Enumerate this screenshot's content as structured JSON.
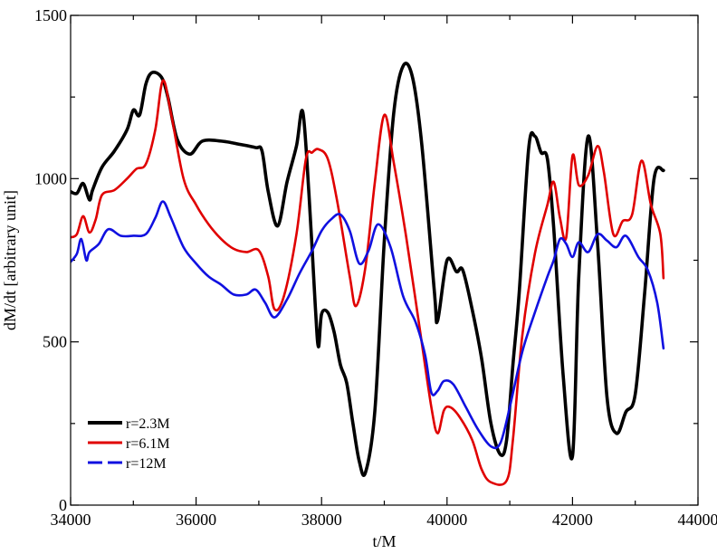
{
  "chart_data": {
    "type": "line",
    "title": "",
    "xlabel": "t/M",
    "ylabel": "dM/dt [arbitrary unit]",
    "xlim": [
      34000,
      44000
    ],
    "ylim": [
      0,
      1500
    ],
    "x_ticks": [
      34000,
      36000,
      38000,
      40000,
      42000,
      44000
    ],
    "x_tick_labels": [
      "34000",
      "36000",
      "38000",
      "40000",
      "42000",
      "44000"
    ],
    "y_ticks": [
      0,
      500,
      1000,
      1500
    ],
    "y_tick_labels": [
      "0",
      "500",
      "1000",
      "1500"
    ],
    "minor_x_ticks": [
      35000,
      37000,
      39000,
      41000,
      43000
    ],
    "minor_y_ticks": [
      250,
      750,
      1250
    ],
    "grid": false,
    "legend_position": "bottom-left",
    "series": [
      {
        "name": "r=2.3M",
        "color": "#000000",
        "dash": "solid",
        "points": [
          [
            34000,
            960
          ],
          [
            34100,
            955
          ],
          [
            34200,
            985
          ],
          [
            34300,
            935
          ],
          [
            34350,
            965
          ],
          [
            34500,
            1035
          ],
          [
            34700,
            1085
          ],
          [
            34900,
            1150
          ],
          [
            35000,
            1210
          ],
          [
            35100,
            1195
          ],
          [
            35200,
            1290
          ],
          [
            35300,
            1325
          ],
          [
            35450,
            1310
          ],
          [
            35550,
            1250
          ],
          [
            35700,
            1120
          ],
          [
            35900,
            1075
          ],
          [
            36100,
            1115
          ],
          [
            36400,
            1115
          ],
          [
            36700,
            1105
          ],
          [
            36950,
            1095
          ],
          [
            37050,
            1085
          ],
          [
            37150,
            960
          ],
          [
            37300,
            855
          ],
          [
            37450,
            990
          ],
          [
            37600,
            1100
          ],
          [
            37700,
            1205
          ],
          [
            37800,
            950
          ],
          [
            37900,
            610
          ],
          [
            37950,
            485
          ],
          [
            38000,
            585
          ],
          [
            38100,
            590
          ],
          [
            38200,
            530
          ],
          [
            38300,
            430
          ],
          [
            38400,
            375
          ],
          [
            38500,
            250
          ],
          [
            38600,
            135
          ],
          [
            38700,
            100
          ],
          [
            38850,
            290
          ],
          [
            39000,
            810
          ],
          [
            39150,
            1200
          ],
          [
            39300,
            1345
          ],
          [
            39450,
            1310
          ],
          [
            39600,
            1100
          ],
          [
            39800,
            650
          ],
          [
            39850,
            565
          ],
          [
            40000,
            750
          ],
          [
            40150,
            715
          ],
          [
            40250,
            720
          ],
          [
            40400,
            600
          ],
          [
            40550,
            450
          ],
          [
            40700,
            250
          ],
          [
            40850,
            155
          ],
          [
            40950,
            200
          ],
          [
            41050,
            430
          ],
          [
            41150,
            650
          ],
          [
            41300,
            1090
          ],
          [
            41400,
            1130
          ],
          [
            41500,
            1080
          ],
          [
            41600,
            1060
          ],
          [
            41700,
            850
          ],
          [
            41850,
            400
          ],
          [
            42000,
            150
          ],
          [
            42100,
            700
          ],
          [
            42250,
            1130
          ],
          [
            42400,
            800
          ],
          [
            42550,
            330
          ],
          [
            42700,
            220
          ],
          [
            42850,
            285
          ],
          [
            43000,
            340
          ],
          [
            43150,
            650
          ],
          [
            43300,
            1000
          ],
          [
            43450,
            1025
          ]
        ]
      },
      {
        "name": "r=6.1M",
        "color": "#e00000",
        "dash": "solid",
        "points": [
          [
            34000,
            820
          ],
          [
            34100,
            830
          ],
          [
            34200,
            885
          ],
          [
            34300,
            835
          ],
          [
            34400,
            875
          ],
          [
            34500,
            950
          ],
          [
            34700,
            965
          ],
          [
            34900,
            1000
          ],
          [
            35050,
            1030
          ],
          [
            35200,
            1045
          ],
          [
            35350,
            1150
          ],
          [
            35470,
            1300
          ],
          [
            35600,
            1200
          ],
          [
            35800,
            1000
          ],
          [
            36000,
            920
          ],
          [
            36200,
            860
          ],
          [
            36400,
            815
          ],
          [
            36600,
            785
          ],
          [
            36800,
            775
          ],
          [
            37000,
            780
          ],
          [
            37150,
            700
          ],
          [
            37250,
            600
          ],
          [
            37400,
            640
          ],
          [
            37600,
            830
          ],
          [
            37750,
            1060
          ],
          [
            37850,
            1080
          ],
          [
            37950,
            1090
          ],
          [
            38100,
            1060
          ],
          [
            38250,
            930
          ],
          [
            38450,
            700
          ],
          [
            38550,
            610
          ],
          [
            38700,
            730
          ],
          [
            38850,
            990
          ],
          [
            39000,
            1195
          ],
          [
            39150,
            1050
          ],
          [
            39350,
            820
          ],
          [
            39550,
            560
          ],
          [
            39750,
            300
          ],
          [
            39850,
            220
          ],
          [
            39950,
            290
          ],
          [
            40050,
            300
          ],
          [
            40200,
            270
          ],
          [
            40400,
            200
          ],
          [
            40550,
            110
          ],
          [
            40700,
            70
          ],
          [
            40950,
            75
          ],
          [
            41050,
            200
          ],
          [
            41200,
            520
          ],
          [
            41400,
            770
          ],
          [
            41600,
            920
          ],
          [
            41700,
            990
          ],
          [
            41800,
            880
          ],
          [
            41900,
            820
          ],
          [
            42000,
            1070
          ],
          [
            42100,
            980
          ],
          [
            42250,
            1010
          ],
          [
            42400,
            1100
          ],
          [
            42500,
            1020
          ],
          [
            42650,
            830
          ],
          [
            42800,
            870
          ],
          [
            42950,
            890
          ],
          [
            43100,
            1055
          ],
          [
            43250,
            920
          ],
          [
            43400,
            830
          ],
          [
            43450,
            695
          ]
        ]
      },
      {
        "name": "r=12M",
        "color": "#1010e0",
        "dash": "dashed",
        "points": [
          [
            34000,
            745
          ],
          [
            34100,
            770
          ],
          [
            34170,
            815
          ],
          [
            34250,
            750
          ],
          [
            34300,
            775
          ],
          [
            34450,
            800
          ],
          [
            34600,
            845
          ],
          [
            34800,
            825
          ],
          [
            35000,
            825
          ],
          [
            35200,
            830
          ],
          [
            35350,
            880
          ],
          [
            35470,
            930
          ],
          [
            35600,
            880
          ],
          [
            35800,
            790
          ],
          [
            36000,
            740
          ],
          [
            36200,
            700
          ],
          [
            36400,
            675
          ],
          [
            36600,
            645
          ],
          [
            36800,
            645
          ],
          [
            36950,
            660
          ],
          [
            37100,
            620
          ],
          [
            37250,
            575
          ],
          [
            37450,
            630
          ],
          [
            37650,
            710
          ],
          [
            37850,
            780
          ],
          [
            38000,
            840
          ],
          [
            38150,
            875
          ],
          [
            38300,
            890
          ],
          [
            38450,
            840
          ],
          [
            38600,
            740
          ],
          [
            38750,
            780
          ],
          [
            38900,
            860
          ],
          [
            39100,
            790
          ],
          [
            39300,
            640
          ],
          [
            39500,
            560
          ],
          [
            39650,
            460
          ],
          [
            39750,
            345
          ],
          [
            39850,
            350
          ],
          [
            39950,
            380
          ],
          [
            40100,
            370
          ],
          [
            40300,
            300
          ],
          [
            40500,
            230
          ],
          [
            40700,
            180
          ],
          [
            40850,
            190
          ],
          [
            41000,
            300
          ],
          [
            41200,
            470
          ],
          [
            41400,
            590
          ],
          [
            41600,
            700
          ],
          [
            41700,
            750
          ],
          [
            41800,
            815
          ],
          [
            41900,
            800
          ],
          [
            42000,
            760
          ],
          [
            42100,
            805
          ],
          [
            42250,
            775
          ],
          [
            42400,
            830
          ],
          [
            42550,
            810
          ],
          [
            42700,
            790
          ],
          [
            42850,
            825
          ],
          [
            43050,
            760
          ],
          [
            43200,
            720
          ],
          [
            43350,
            620
          ],
          [
            43450,
            480
          ]
        ]
      }
    ]
  }
}
